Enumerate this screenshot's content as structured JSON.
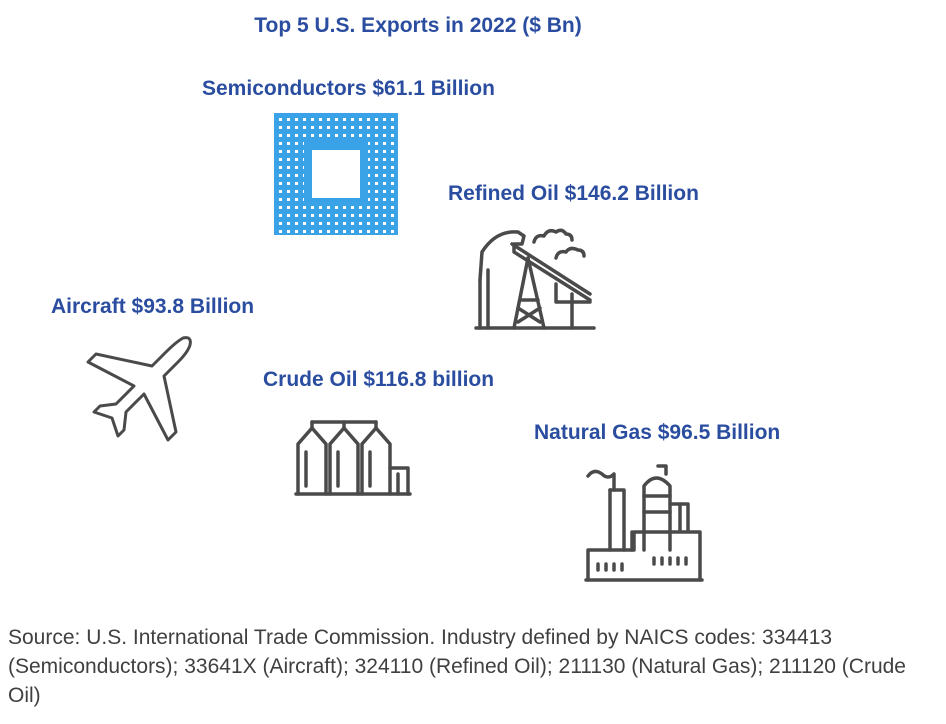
{
  "title": "Top 5 U.S. Exports in 2022 ($ Bn)",
  "items": {
    "semiconductors": {
      "label": "Semiconductors $61.1 Billion",
      "icon": "microchip-icon"
    },
    "refined_oil": {
      "label": "Refined Oil $146.2 Billion",
      "icon": "pumpjack-icon"
    },
    "aircraft": {
      "label": "Aircraft $93.8 Billion",
      "icon": "airplane-icon"
    },
    "crude_oil": {
      "label": "Crude Oil $116.8 billion",
      "icon": "storage-silos-icon"
    },
    "natural_gas": {
      "label": "Natural Gas $96.5 Billion",
      "icon": "gas-plant-icon"
    }
  },
  "source": "Source: U.S. International Trade Commission. Industry defined by NAICS codes: 334413 (Semiconductors); 33641X (Aircraft); 324110 (Refined Oil); 211130 (Natural Gas); 211120 (Crude Oil)",
  "colors": {
    "heading": "#2a4da0",
    "chip": "#3aa3e8",
    "icon_stroke": "#4a4a4a",
    "source_text": "#404040"
  }
}
